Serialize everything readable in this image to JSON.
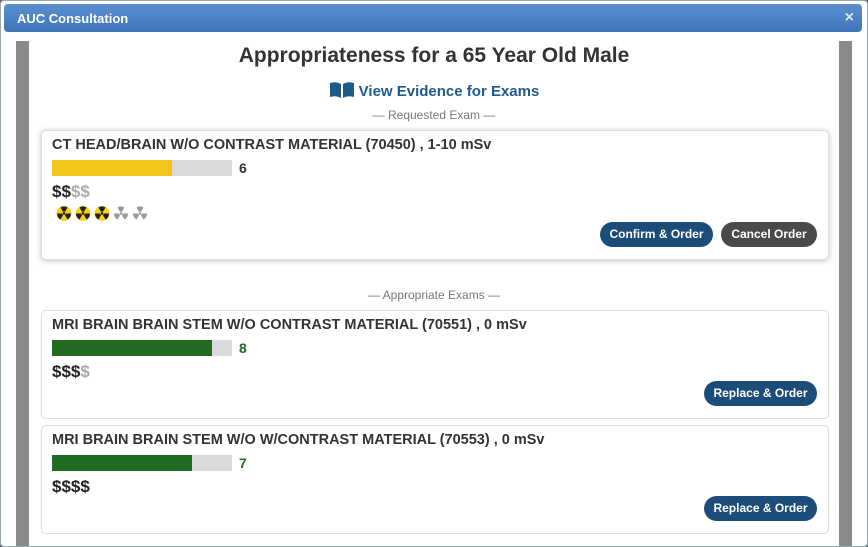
{
  "dialog": {
    "title": "AUC Consultation",
    "close": "×"
  },
  "heading": "Appropriateness for a 65 Year Old Male",
  "evidence_link": "View Evidence for Exams",
  "score_range": [
    0,
    9
  ],
  "requested": {
    "section": "— Requested Exam —",
    "exam": {
      "name": "CT HEAD/BRAIN W/O CONTRAST MATERIAL (70450) , 1-10 mSv",
      "score": 6,
      "color": "#f2c518",
      "cost": "$$",
      "cost_rest": "$$",
      "radiation": 3,
      "radiation_max": 5
    },
    "buttons": [
      "Confirm & Order",
      "Cancel Order"
    ]
  },
  "appropriate": {
    "section": "— Appropriate Exams —",
    "exams": [
      {
        "name": "MRI BRAIN BRAIN STEM W/O CONTRAST MATERIAL (70551) , 0 mSv",
        "score": 8,
        "color": "#226b22",
        "cost": "$$$",
        "cost_rest": "$"
      },
      {
        "name": "MRI BRAIN BRAIN STEM W/O W/CONTRAST MATERIAL (70553) , 0 mSv",
        "score": 7,
        "color": "#226b22",
        "cost": "$$$$"
      }
    ],
    "button": "Replace & Order"
  }
}
